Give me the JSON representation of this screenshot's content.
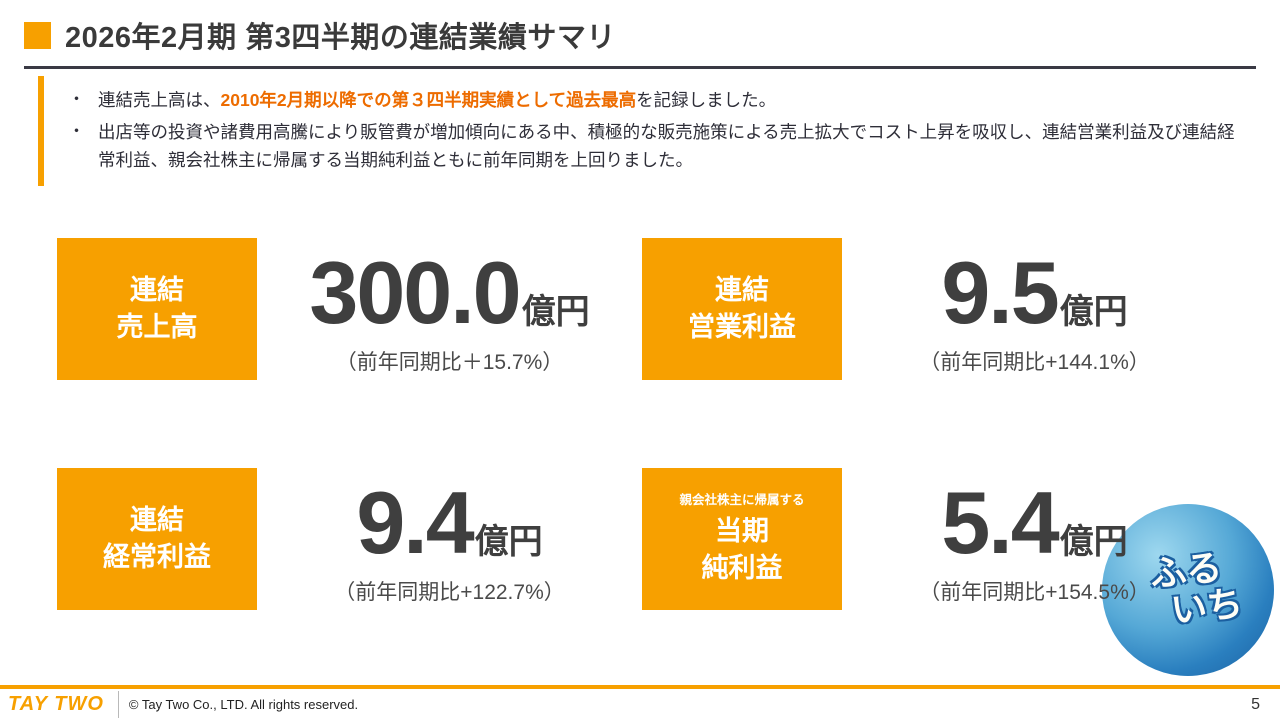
{
  "title": "2026年2月期 第3四半期の連結業績サマリ",
  "summary": {
    "bullet_char": "・",
    "bullet1_prefix": "連結売上高は、",
    "bullet1_highlight": "2010年2月期以降での第３四半期実績として過去最高",
    "bullet1_suffix": "を記録しました。",
    "bullet2": "出店等の投資や諸費用高騰により販管費が増加傾向にある中、積極的な販売施策による売上拡大でコスト上昇を吸収し、連結営業利益及び連結経常利益、親会社株主に帰属する当期純利益ともに前年同期を上回りました。"
  },
  "metrics": [
    {
      "label_line1": "連結",
      "label_line2": "売上高",
      "value": "300.0",
      "unit": "億円",
      "yoy": "（前年同期比＋15.7%）"
    },
    {
      "label_line1": "連結",
      "label_line2": "営業利益",
      "value": "9.5",
      "unit": "億円",
      "yoy": "（前年同期比+144.1%）"
    },
    {
      "label_line1": "連結",
      "label_line2": "経常利益",
      "value": "9.4",
      "unit": "億円",
      "yoy": "（前年同期比+122.7%）"
    },
    {
      "label_small": "親会社株主に帰属する",
      "label_line1": "当期",
      "label_line2": "純利益",
      "value": "5.4",
      "unit": "億円",
      "yoy": "（前年同期比+154.5%）"
    }
  ],
  "mascot": {
    "line1": "ふる",
    "line2": "いち"
  },
  "footer": {
    "logo_text": "TAY TWO",
    "copyright": "© Tay Two Co., LTD. All rights reserved.",
    "page": "5"
  },
  "colors": {
    "accent": "#F7A000",
    "highlight": "#ED6C00"
  }
}
